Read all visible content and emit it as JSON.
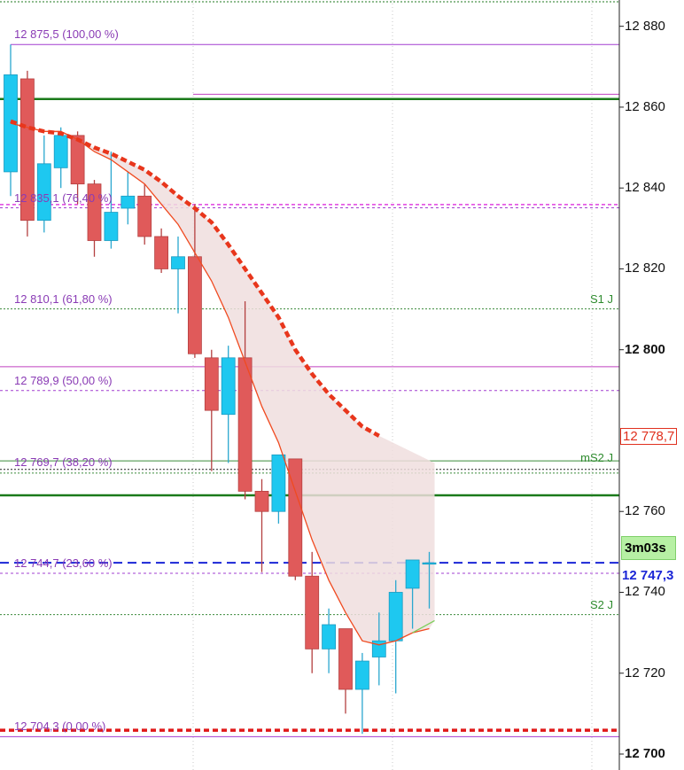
{
  "chart_data": {
    "type": "candlestick",
    "y_axis": {
      "ticks": [
        "12 880",
        "12 860",
        "12 840",
        "12 820",
        "12 800",
        "12 760",
        "12 740",
        "12 720",
        "12 700"
      ],
      "tick_values": [
        12880,
        12860,
        12840,
        12820,
        12800,
        12760,
        12740,
        12720,
        12700
      ],
      "bold_ticks": [
        "12 800",
        "12 700"
      ],
      "range": [
        12698,
        12884
      ]
    },
    "candles": [
      {
        "o": 12844,
        "h": 12875.5,
        "l": 12838,
        "c": 12868
      },
      {
        "o": 12867,
        "h": 12869,
        "l": 12828,
        "c": 12832
      },
      {
        "o": 12832,
        "h": 12853,
        "l": 12829,
        "c": 12846
      },
      {
        "o": 12845,
        "h": 12855,
        "l": 12840,
        "c": 12853
      },
      {
        "o": 12853,
        "h": 12854,
        "l": 12836,
        "c": 12841
      },
      {
        "o": 12841,
        "h": 12842,
        "l": 12823,
        "c": 12827
      },
      {
        "o": 12827,
        "h": 12849,
        "l": 12825,
        "c": 12834
      },
      {
        "o": 12835,
        "h": 12844,
        "l": 12831,
        "c": 12838
      },
      {
        "o": 12838,
        "h": 12841,
        "l": 12826,
        "c": 12828
      },
      {
        "o": 12828,
        "h": 12830,
        "l": 12819,
        "c": 12820
      },
      {
        "o": 12820,
        "h": 12828,
        "l": 12809,
        "c": 12823
      },
      {
        "o": 12823,
        "h": 12836,
        "l": 12798,
        "c": 12799
      },
      {
        "o": 12798,
        "h": 12800,
        "l": 12770,
        "c": 12785
      },
      {
        "o": 12784,
        "h": 12801,
        "l": 12772,
        "c": 12798
      },
      {
        "o": 12798,
        "h": 12812,
        "l": 12763,
        "c": 12765
      },
      {
        "o": 12765,
        "h": 12768,
        "l": 12745,
        "c": 12760
      },
      {
        "o": 12760,
        "h": 12774,
        "l": 12757,
        "c": 12774
      },
      {
        "o": 12773,
        "h": 12773,
        "l": 12743,
        "c": 12744
      },
      {
        "o": 12744,
        "h": 12750,
        "l": 12720,
        "c": 12726
      },
      {
        "o": 12726,
        "h": 12736,
        "l": 12720,
        "c": 12732
      },
      {
        "o": 12731,
        "h": 12731,
        "l": 12710,
        "c": 12716
      },
      {
        "o": 12716,
        "h": 12725,
        "l": 12705,
        "c": 12723
      },
      {
        "o": 12724,
        "h": 12735,
        "l": 12717,
        "c": 12728
      },
      {
        "o": 12728,
        "h": 12743,
        "l": 12715,
        "c": 12740
      },
      {
        "o": 12741,
        "h": 12748,
        "l": 12731,
        "c": 12748
      },
      {
        "o": 12747.3,
        "h": 12750,
        "l": 12736,
        "c": 12747.3
      }
    ],
    "fibonacci_levels": [
      {
        "label": "12 875,5 (100,00 %)",
        "value": 12875.5
      },
      {
        "label": "12 835,1 (76,40 %)",
        "value": 12835.1
      },
      {
        "label": "12 810,1 (61,80 %)",
        "value": 12810.1
      },
      {
        "label": "12 789,9 (50,00 %)",
        "value": 12789.9
      },
      {
        "label": "12 769,7 (38,20 %)",
        "value": 12769.7
      },
      {
        "label": "12 744,7 (23,60 %)",
        "value": 12744.7
      },
      {
        "label": "12 704,3 (0,00 %)",
        "value": 12704.3
      }
    ],
    "pivot_labels": [
      {
        "label": "S1 J",
        "value": 12810.1
      },
      {
        "label": "mS2 J",
        "value": 12770.7
      },
      {
        "label": "S2 J",
        "value": 12734.5
      }
    ],
    "moving_average_label": "12 778,7",
    "current_price_label": "12 747,3",
    "candle_timer": "3m03s",
    "colors": {
      "bull": "#1ec8f0",
      "bear": "#e05a5a",
      "fib": "#a23fd0",
      "pivot": "#2e8b2e",
      "ma": "#e8361c",
      "price_line": "#1a25d6",
      "cloud": "#f0dede"
    }
  }
}
